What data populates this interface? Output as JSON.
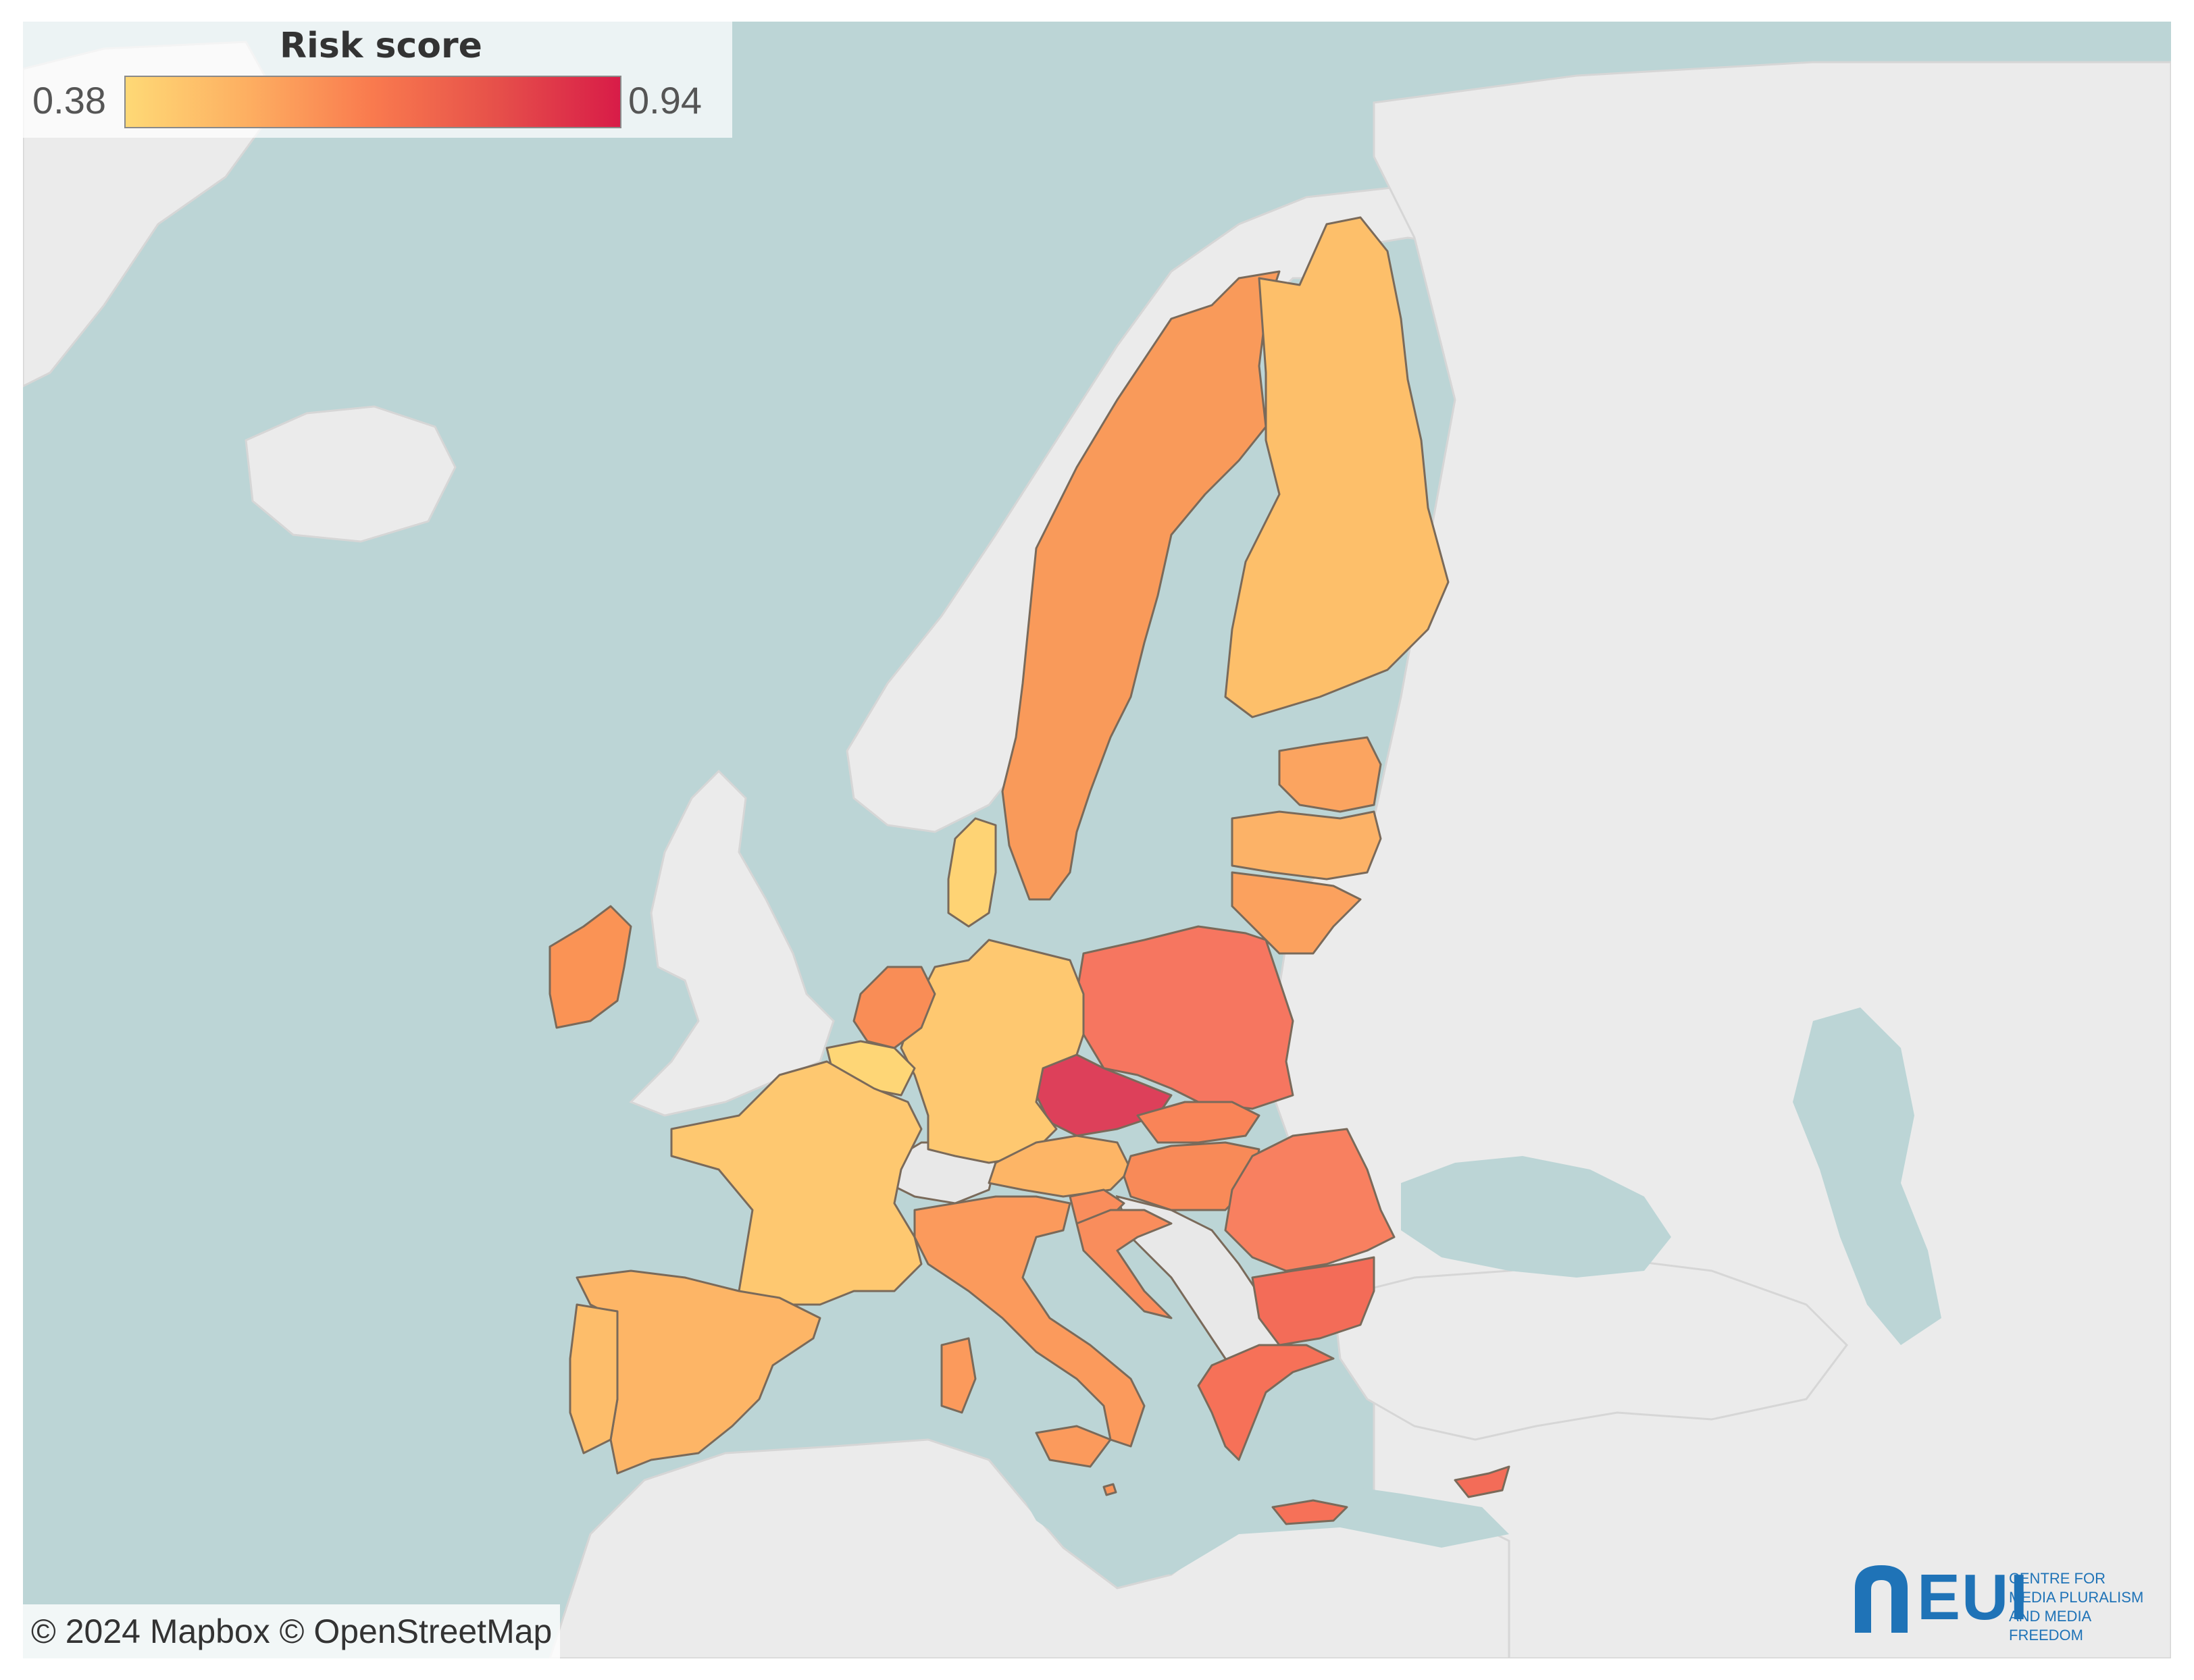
{
  "legend": {
    "title": "Risk score",
    "min_label": "0.38",
    "max_label": "0.94",
    "color_min": "#fed976",
    "color_max": "#d81c48"
  },
  "attribution": "© 2024 Mapbox © OpenStreetMap",
  "logo": {
    "text": "EUI",
    "subtitle": "CENTRE FOR MEDIA PLURALISM AND MEDIA FREEDOM"
  },
  "colors": {
    "sea": "#bcd5d6",
    "land": "#ebebeb",
    "no_data": "#e8e8e8",
    "border": "#7a6a5a"
  },
  "countries": [
    {
      "name": "Sweden",
      "color": "#f99a5a"
    },
    {
      "name": "Finland",
      "color": "#fdbf6a"
    },
    {
      "name": "Estonia",
      "color": "#fba460"
    },
    {
      "name": "Latvia",
      "color": "#fcb267"
    },
    {
      "name": "Lithuania",
      "color": "#fba15e"
    },
    {
      "name": "Poland",
      "color": "#f67660"
    },
    {
      "name": "Czechia",
      "color": "#dd405a"
    },
    {
      "name": "Germany",
      "color": "#fec870"
    },
    {
      "name": "Denmark",
      "color": "#fed374"
    },
    {
      "name": "Netherlands",
      "color": "#f98d56"
    },
    {
      "name": "Belgium",
      "color": "#fed676"
    },
    {
      "name": "Luxembourg",
      "color": "#fec870"
    },
    {
      "name": "France",
      "color": "#fec870"
    },
    {
      "name": "Ireland",
      "color": "#fa9355"
    },
    {
      "name": "Spain",
      "color": "#fdb566"
    },
    {
      "name": "Portugal",
      "color": "#fdbd6a"
    },
    {
      "name": "Austria",
      "color": "#fdb566"
    },
    {
      "name": "Slovakia",
      "color": "#f98458"
    },
    {
      "name": "Hungary",
      "color": "#f88a58"
    },
    {
      "name": "Slovenia",
      "color": "#f98d5c"
    },
    {
      "name": "Croatia",
      "color": "#f98d5c"
    },
    {
      "name": "Italy",
      "color": "#fb9a5c"
    },
    {
      "name": "Malta",
      "color": "#fa9356"
    },
    {
      "name": "Romania",
      "color": "#f88060"
    },
    {
      "name": "Bulgaria",
      "color": "#f36c58"
    },
    {
      "name": "Greece",
      "color": "#f67158"
    },
    {
      "name": "Cyprus",
      "color": "#f36c58"
    }
  ]
}
